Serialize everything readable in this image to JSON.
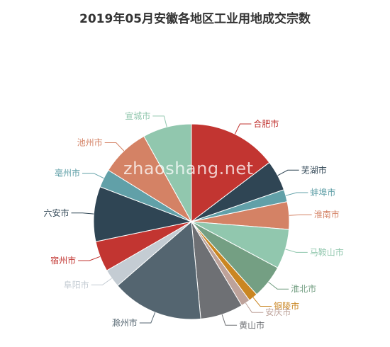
{
  "chart_data": {
    "type": "pie",
    "title": "2019年05月安徽各地区工业用地成交宗数",
    "legend": "none",
    "labels_position": "outside",
    "slices": [
      {
        "name": "合肥市",
        "value": 14.5,
        "color": "#c23531"
      },
      {
        "name": "芜湖市",
        "value": 5.0,
        "color": "#2f4554"
      },
      {
        "name": "蚌埠市",
        "value": 2.0,
        "color": "#61a0a8"
      },
      {
        "name": "淮南市",
        "value": 4.5,
        "color": "#d48265"
      },
      {
        "name": "马鞍山市",
        "value": 6.5,
        "color": "#91c7ae"
      },
      {
        "name": "淮北市",
        "value": 5.5,
        "color": "#749f83"
      },
      {
        "name": "铜陵市",
        "value": 1.5,
        "color": "#ca8622"
      },
      {
        "name": "安庆市",
        "value": 1.5,
        "color": "#bda29a"
      },
      {
        "name": "黄山市",
        "value": 7.0,
        "color": "#6e7074"
      },
      {
        "name": "滁州市",
        "value": 15.0,
        "color": "#546570"
      },
      {
        "name": "阜阳市",
        "value": 3.0,
        "color": "#c4ccd3"
      },
      {
        "name": "宿州市",
        "value": 5.0,
        "color": "#c23531"
      },
      {
        "name": "六安市",
        "value": 9.0,
        "color": "#2f4554"
      },
      {
        "name": "亳州市",
        "value": 3.0,
        "color": "#61a0a8"
      },
      {
        "name": "池州市",
        "value": 8.0,
        "color": "#d48265"
      },
      {
        "name": "宣城市",
        "value": 8.0,
        "color": "#91c7ae"
      }
    ]
  },
  "watermark": "zhaoshang.net"
}
